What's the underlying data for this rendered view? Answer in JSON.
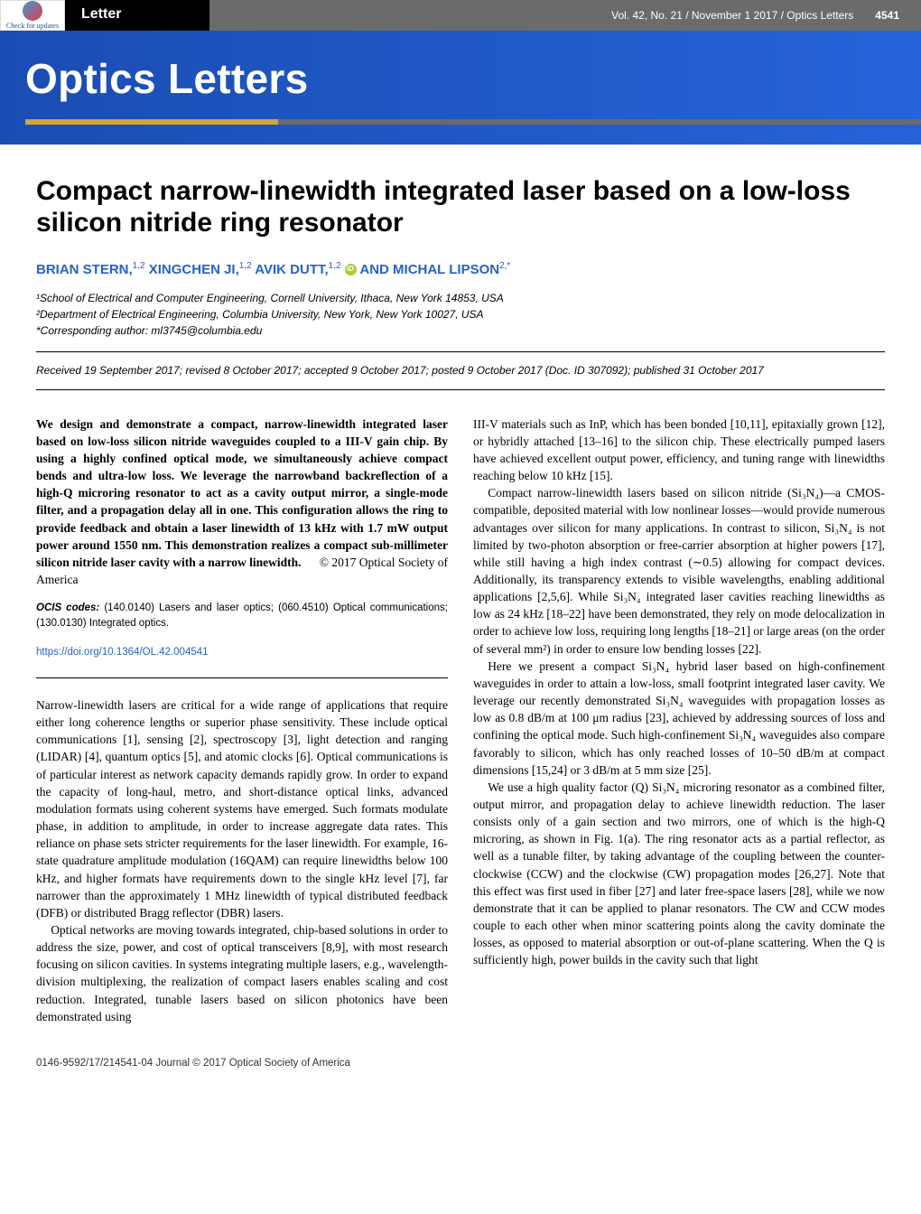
{
  "header": {
    "check_label": "Check for updates",
    "letter_tag": "Letter",
    "meta": "Vol. 42, No. 21 / November 1 2017 / Optics Letters",
    "page_num": "4541",
    "journal_title": "Optics Letters"
  },
  "article": {
    "title": "Compact narrow-linewidth integrated laser based on a low-loss silicon nitride ring resonator",
    "authors_html": "BRIAN STERN,<sup>1,2</sup> XINGCHEN JI,<sup>1,2</sup> AVIK DUTT,<sup>1,2</sup> ",
    "authors_tail": " AND MICHAL LIPSON<sup>2,*</sup>",
    "affil1": "¹School of Electrical and Computer Engineering, Cornell University, Ithaca, New York 14853, USA",
    "affil2": "²Department of Electrical Engineering, Columbia University, New York, New York 10027, USA",
    "affil3": "*Corresponding author: ml3745@columbia.edu",
    "dates": "Received 19 September 2017; revised 8 October 2017; accepted 9 October 2017; posted 9 October 2017 (Doc. ID 307092); published 31 October 2017",
    "abstract": "We design and demonstrate a compact, narrow-linewidth integrated laser based on low-loss silicon nitride waveguides coupled to a III-V gain chip. By using a highly confined optical mode, we simultaneously achieve compact bends and ultra-low loss. We leverage the narrowband backreflection of a high-Q microring resonator to act as a cavity output mirror, a single-mode filter, and a propagation delay all in one. This configuration allows the ring to provide feedback and obtain a laser linewidth of 13 kHz with 1.7 mW output power around 1550 nm. This demonstration realizes a compact sub-millimeter silicon nitride laser cavity with a narrow linewidth.",
    "copyright": "© 2017 Optical Society of America",
    "ocis_label": "OCIS codes:",
    "ocis": " (140.0140) Lasers and laser optics; (060.4510) Optical communications; (130.0130) Integrated optics.",
    "doi": "https://doi.org/10.1364/OL.42.004541",
    "col1_p1": "Narrow-linewidth lasers are critical for a wide range of applications that require either long coherence lengths or superior phase sensitivity. These include optical communications [1], sensing [2], spectroscopy [3], light detection and ranging (LIDAR) [4], quantum optics [5], and atomic clocks [6]. Optical communications is of particular interest as network capacity demands rapidly grow. In order to expand the capacity of long-haul, metro, and short-distance optical links, advanced modulation formats using coherent systems have emerged. Such formats modulate phase, in addition to amplitude, in order to increase aggregate data rates. This reliance on phase sets stricter requirements for the laser linewidth. For example, 16-state quadrature amplitude modulation (16QAM) can require linewidths below 100 kHz, and higher formats have requirements down to the single kHz level [7], far narrower than the approximately 1 MHz linewidth of typical distributed feedback (DFB) or distributed Bragg reflector (DBR) lasers.",
    "col1_p2": "Optical networks are moving towards integrated, chip-based solutions in order to address the size, power, and cost of optical transceivers [8,9], with most research focusing on silicon cavities. In systems integrating multiple lasers, e.g., wavelength-division multiplexing, the realization of compact lasers enables scaling and cost reduction. Integrated, tunable lasers based on silicon photonics have been demonstrated using",
    "col2_p1": "III-V materials such as InP, which has been bonded [10,11], epitaxially grown [12], or hybridly attached [13–16] to the silicon chip. These electrically pumped lasers have achieved excellent output power, efficiency, and tuning range with linewidths reaching below 10 kHz [15].",
    "col2_p2": "Compact narrow-linewidth lasers based on silicon nitride (Si₃N₄)—a CMOS-compatible, deposited material with low nonlinear losses—would provide numerous advantages over silicon for many applications. In contrast to silicon, Si₃N₄ is not limited by two-photon absorption or free-carrier absorption at higher powers [17], while still having a high index contrast (∼0.5) allowing for compact devices. Additionally, its transparency extends to visible wavelengths, enabling additional applications [2,5,6]. While Si₃N₄ integrated laser cavities reaching linewidths as low as 24 kHz [18–22] have been demonstrated, they rely on mode delocalization in order to achieve low loss, requiring long lengths [18–21] or large areas (on the order of several mm²) in order to ensure low bending losses [22].",
    "col2_p3": "Here we present a compact Si₃N₄ hybrid laser based on high-confinement waveguides in order to attain a low-loss, small footprint integrated laser cavity. We leverage our recently demonstrated Si₃N₄ waveguides with propagation losses as low as 0.8 dB/m at 100 μm radius [23], achieved by addressing sources of loss and confining the optical mode. Such high-confinement Si₃N₄ waveguides also compare favorably to silicon, which has only reached losses of 10–50 dB/m at compact dimensions [15,24] or 3 dB/m at 5 mm size [25].",
    "col2_p4": "We use a high quality factor (Q) Si₃N₄ microring resonator as a combined filter, output mirror, and propagation delay to achieve linewidth reduction. The laser consists only of a gain section and two mirrors, one of which is the high-Q microring, as shown in Fig. 1(a). The ring resonator acts as a partial reflector, as well as a tunable filter, by taking advantage of the coupling between the counter-clockwise (CCW) and the clockwise (CW) propagation modes [26,27]. Note that this effect was first used in fiber [27] and later free-space lasers [28], while we now demonstrate that it can be applied to planar resonators. The CW and CCW modes couple to each other when minor scattering points along the cavity dominate the losses, as opposed to material absorption or out-of-plane scattering. When the Q is sufficiently high, power builds in the cavity such that light"
  },
  "footer": {
    "left": "0146-9592/17/214541-04 Journal © 2017 Optical Society of America",
    "right": ""
  },
  "colors": {
    "banner_bg": "#1a4db3",
    "link": "#2563c7",
    "header_gray": "#6b6b6b",
    "accent_gold": "#d4a43c"
  }
}
